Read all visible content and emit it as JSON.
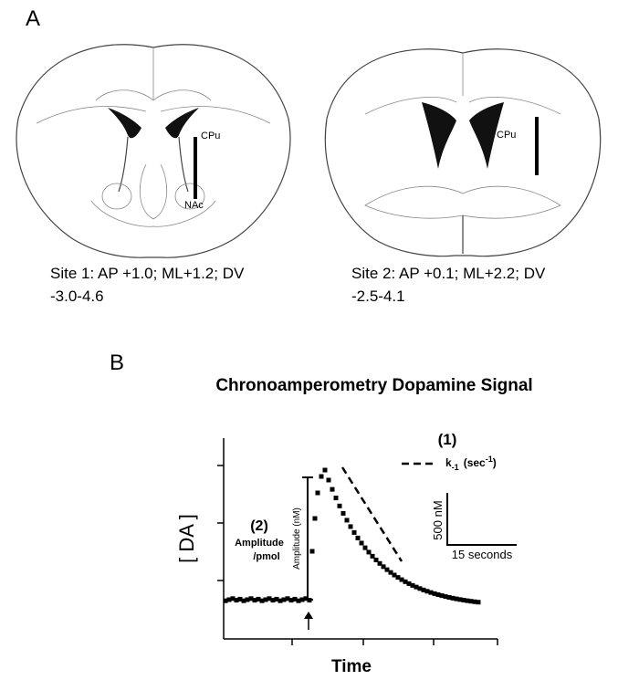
{
  "panel_a": {
    "label": "A",
    "site1": {
      "structures": [
        "CPu",
        "NAc"
      ],
      "caption_line1": "Site 1: AP +1.0; ML+1.2; DV",
      "caption_line2": "-3.0-4.6"
    },
    "site2": {
      "structures": [
        "CPu"
      ],
      "caption_line1": "Site 2: AP +0.1; ML+2.2; DV",
      "caption_line2": "-2.5-4.1"
    }
  },
  "panel_b": {
    "label": "B",
    "title": "Chronoamperometry Dopamine Signal",
    "y_axis_label": "[ DA ]",
    "x_axis_label": "Time",
    "annotation1": {
      "number": "(1)",
      "symbol": "k",
      "symbol_sub": "-1",
      "unit_open": "(sec",
      "unit_sup": "-1",
      "unit_close": ")"
    },
    "annotation2": {
      "number": "(2)",
      "line1": "Amplitude",
      "line2": "/pmol"
    },
    "amplitude_label": "Amplitude (nM)",
    "scale_y": "500 nM",
    "scale_x": "15 seconds"
  }
}
